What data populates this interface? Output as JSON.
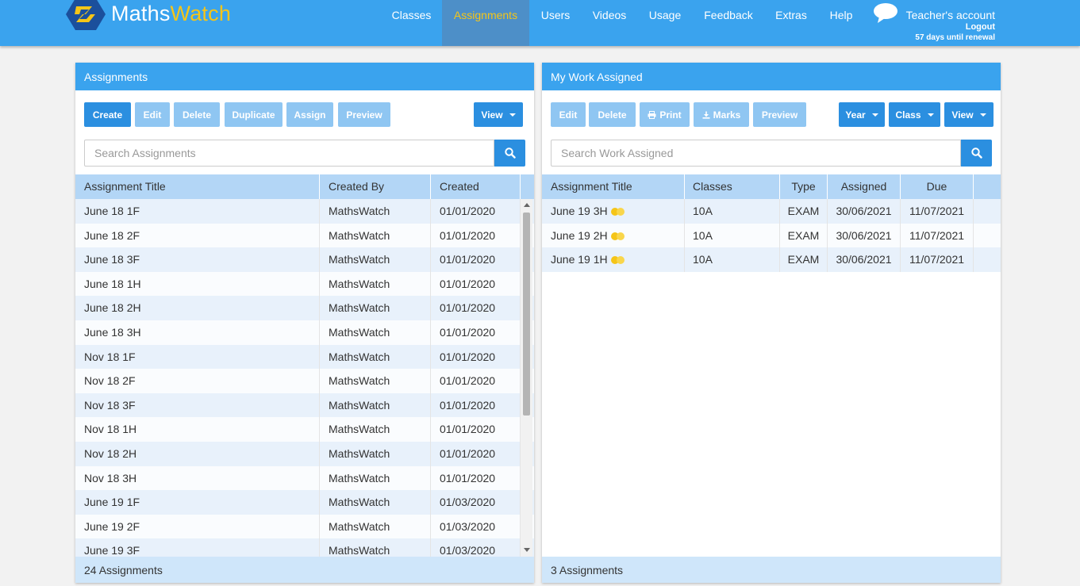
{
  "brand": {
    "name_part1": "Maths",
    "name_part2": "Watch"
  },
  "nav": {
    "items": [
      "Classes",
      "Assignments",
      "Users",
      "Videos",
      "Usage",
      "Feedback",
      "Extras",
      "Help"
    ],
    "active": "Assignments"
  },
  "account": {
    "name": "Teacher's account",
    "logout": "Logout",
    "renewal": "57 days until renewal"
  },
  "colors": {
    "primary": "#3aa3ee",
    "button": "#2b8fe0",
    "accent": "#f5c518"
  },
  "left_panel": {
    "title": "Assignments",
    "buttons": {
      "create": "Create",
      "edit": "Edit",
      "delete": "Delete",
      "duplicate": "Duplicate",
      "assign": "Assign",
      "preview": "Preview",
      "view": "View"
    },
    "search_placeholder": "Search Assignments",
    "columns": [
      "Assignment Title",
      "Created By",
      "Created"
    ],
    "rows": [
      [
        "June 18 1F",
        "MathsWatch",
        "01/01/2020"
      ],
      [
        "June 18 2F",
        "MathsWatch",
        "01/01/2020"
      ],
      [
        "June 18 3F",
        "MathsWatch",
        "01/01/2020"
      ],
      [
        "June 18 1H",
        "MathsWatch",
        "01/01/2020"
      ],
      [
        "June 18 2H",
        "MathsWatch",
        "01/01/2020"
      ],
      [
        "June 18 3H",
        "MathsWatch",
        "01/01/2020"
      ],
      [
        "Nov 18 1F",
        "MathsWatch",
        "01/01/2020"
      ],
      [
        "Nov 18 2F",
        "MathsWatch",
        "01/01/2020"
      ],
      [
        "Nov 18 3F",
        "MathsWatch",
        "01/01/2020"
      ],
      [
        "Nov 18 1H",
        "MathsWatch",
        "01/01/2020"
      ],
      [
        "Nov 18 2H",
        "MathsWatch",
        "01/01/2020"
      ],
      [
        "Nov 18 3H",
        "MathsWatch",
        "01/01/2020"
      ],
      [
        "June 19 1F",
        "MathsWatch",
        "01/03/2020"
      ],
      [
        "June 19 2F",
        "MathsWatch",
        "01/03/2020"
      ],
      [
        "June 19 3F",
        "MathsWatch",
        "01/03/2020"
      ]
    ],
    "footer": "24 Assignments"
  },
  "right_panel": {
    "title": "My Work Assigned",
    "buttons": {
      "edit": "Edit",
      "delete": "Delete",
      "print": "Print",
      "marks": "Marks",
      "preview": "Preview",
      "year": "Year",
      "class": "Class",
      "view": "View"
    },
    "search_placeholder": "Search Work Assigned",
    "columns": [
      "Assignment Title",
      "Classes",
      "Type",
      "Assigned",
      "Due"
    ],
    "rows": [
      [
        "June 19 3H",
        "10A",
        "EXAM",
        "30/06/2021",
        "11/07/2021"
      ],
      [
        "June 19 2H",
        "10A",
        "EXAM",
        "30/06/2021",
        "11/07/2021"
      ],
      [
        "June 19 1H",
        "10A",
        "EXAM",
        "30/06/2021",
        "11/07/2021"
      ]
    ],
    "footer": "3 Assignments"
  }
}
